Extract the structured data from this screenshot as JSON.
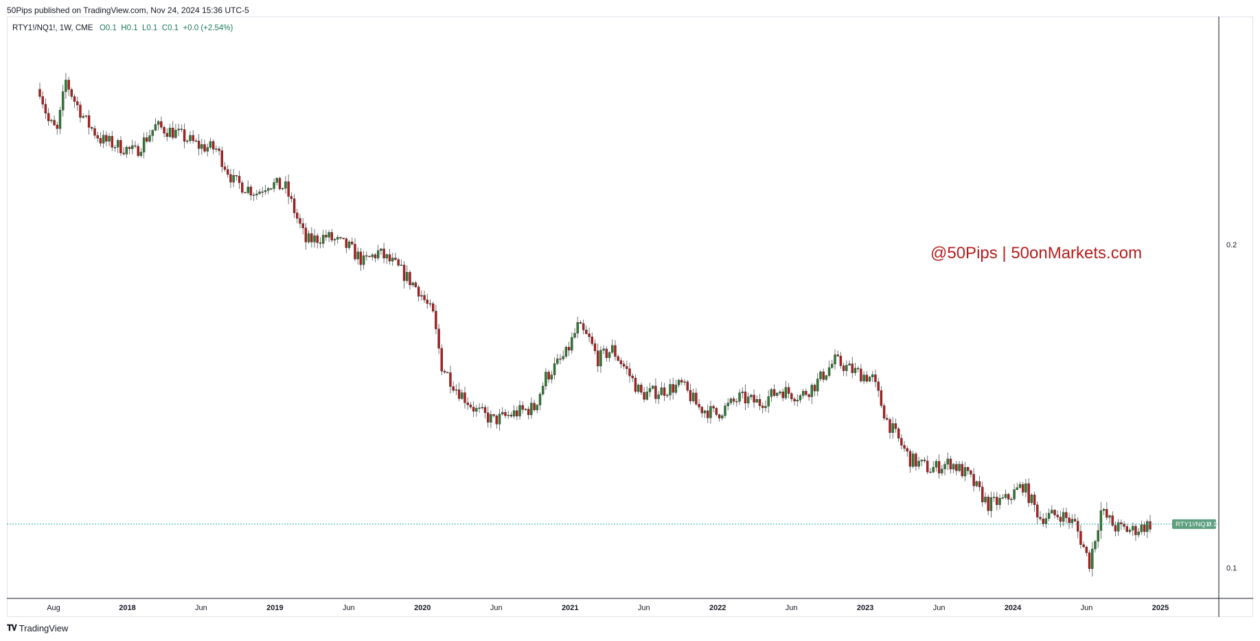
{
  "publisher_line": "50Pips published on TradingView.com, Nov 24, 2024 15:36 UTC-5",
  "legend": {
    "symbol": "RTY1!/NQ1!, 1W, CME",
    "o": "O0.1",
    "h": "H0.1",
    "l": "L0.1",
    "c": "C0.1",
    "change": "+0.0 (+2.54%)"
  },
  "watermark": "@50Pips | 50onMarkets.com",
  "footer": {
    "logo_text": "TradingView"
  },
  "colors": {
    "up": "#2e7d32",
    "down": "#b71c1c",
    "wick": "#4a4a4a",
    "price_line": "#26a69a",
    "badge": "#5d9f7f"
  },
  "price_badge": {
    "symbol": "RTY1!/NQ1!",
    "value": "0.1"
  },
  "chart_data": {
    "type": "candlestick",
    "timeframe": "1W",
    "x_ticks": [
      "Aug",
      "2018",
      "Jun",
      "2019",
      "Jun",
      "2020",
      "Jun",
      "2021",
      "Jun",
      "2022",
      "Jun",
      "2023",
      "Jun",
      "2024",
      "Jun",
      "2025"
    ],
    "y_ticks": [
      {
        "label": "0.2",
        "value": 0.2
      },
      {
        "label": "0.1",
        "value": 0.1
      }
    ],
    "ylim": [
      0.092,
      0.262
    ],
    "last_price": 0.1135,
    "close_path": [
      [
        "2017-07-16",
        0.248
      ],
      [
        "2017-08-06",
        0.238
      ],
      [
        "2017-08-27",
        0.235
      ],
      [
        "2017-09-17",
        0.2505
      ],
      [
        "2017-10-08",
        0.2445
      ],
      [
        "2017-11-05",
        0.238
      ],
      [
        "2017-12-10",
        0.2325
      ],
      [
        "2018-01-21",
        0.2305
      ],
      [
        "2018-03-04",
        0.2285
      ],
      [
        "2018-04-22",
        0.2365
      ],
      [
        "2018-06-10",
        0.2345
      ],
      [
        "2018-08-05",
        0.2305
      ],
      [
        "2018-09-16",
        0.2295
      ],
      [
        "2018-10-28",
        0.2195
      ],
      [
        "2018-12-23",
        0.216
      ],
      [
        "2019-01-20",
        0.219
      ],
      [
        "2019-03-03",
        0.2175
      ],
      [
        "2019-04-21",
        0.201
      ],
      [
        "2019-06-09",
        0.2025
      ],
      [
        "2019-08-04",
        0.199
      ],
      [
        "2019-09-08",
        0.1945
      ],
      [
        "2019-10-13",
        0.1975
      ],
      [
        "2019-11-24",
        0.1935
      ],
      [
        "2020-01-19",
        0.186
      ],
      [
        "2020-02-23",
        0.178
      ],
      [
        "2020-03-15",
        0.1625
      ],
      [
        "2020-04-19",
        0.1555
      ],
      [
        "2020-06-07",
        0.1485
      ],
      [
        "2020-07-19",
        0.1455
      ],
      [
        "2020-09-13",
        0.148
      ],
      [
        "2020-10-25",
        0.1495
      ],
      [
        "2020-11-22",
        0.159
      ],
      [
        "2021-01-10",
        0.166
      ],
      [
        "2021-02-07",
        0.1745
      ],
      [
        "2021-03-07",
        0.1705
      ],
      [
        "2021-03-28",
        0.1645
      ],
      [
        "2021-05-02",
        0.1675
      ],
      [
        "2021-06-06",
        0.161
      ],
      [
        "2021-07-11",
        0.1535
      ],
      [
        "2021-08-22",
        0.1545
      ],
      [
        "2021-10-17",
        0.1565
      ],
      [
        "2021-11-28",
        0.1495
      ],
      [
        "2022-01-09",
        0.1475
      ],
      [
        "2022-03-06",
        0.1525
      ],
      [
        "2022-04-24",
        0.151
      ],
      [
        "2022-06-12",
        0.155
      ],
      [
        "2022-07-31",
        0.153
      ],
      [
        "2022-09-04",
        0.1565
      ],
      [
        "2022-10-23",
        0.164
      ],
      [
        "2022-12-04",
        0.161
      ],
      [
        "2023-01-22",
        0.1585
      ],
      [
        "2023-02-26",
        0.1455
      ],
      [
        "2023-04-23",
        0.1335
      ],
      [
        "2023-06-11",
        0.1305
      ],
      [
        "2023-07-30",
        0.1325
      ],
      [
        "2023-09-10",
        0.1285
      ],
      [
        "2023-10-29",
        0.1195
      ],
      [
        "2023-12-10",
        0.121
      ],
      [
        "2024-01-21",
        0.1255
      ],
      [
        "2024-03-03",
        0.1155
      ],
      [
        "2024-04-21",
        0.1165
      ],
      [
        "2024-05-26",
        0.1135
      ],
      [
        "2024-06-30",
        0.1015
      ],
      [
        "2024-07-14",
        0.1095
      ],
      [
        "2024-07-28",
        0.1175
      ],
      [
        "2024-09-01",
        0.1125
      ],
      [
        "2024-10-13",
        0.1115
      ],
      [
        "2024-11-24",
        0.1135
      ]
    ]
  }
}
